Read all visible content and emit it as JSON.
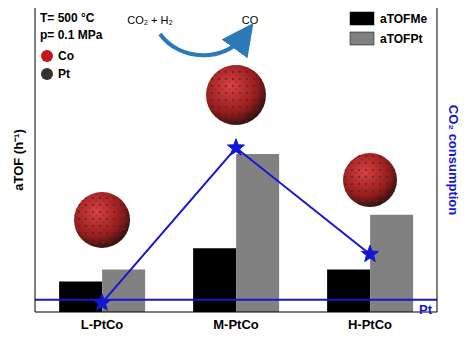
{
  "chart_data": {
    "type": "bar",
    "categories": [
      "L-PtCo",
      "M-PtCo",
      "H-PtCo"
    ],
    "y_label": "aTOF (h⁻¹)",
    "y2_label": "CO₂ consumption",
    "ylim": [
      0,
      100
    ],
    "yticks": [],
    "y2lim": [
      0,
      100
    ],
    "y2ticks": [],
    "tick_labels": "x",
    "legend": "upper right",
    "series": [
      {
        "name": "aTOFMe",
        "color": "#000000",
        "values": [
          10,
          21,
          14
        ]
      },
      {
        "name": "aTOFPt",
        "color": "#8c8c8c",
        "values": [
          14,
          52,
          32
        ]
      },
      {
        "type": "line",
        "axis": "y2",
        "color": "#1515d6",
        "marker": "star",
        "values": [
          3,
          54,
          19
        ]
      }
    ],
    "reference_lines": [
      {
        "axis": "y2",
        "value": 4,
        "label": "Pt",
        "color": "#1515d6"
      }
    ],
    "annotations": [
      "T= 500 °C",
      "p= 0.1 MPa",
      "CO₂ + H₂",
      "CO"
    ],
    "marker_key": [
      {
        "label": "Co",
        "color": "#c0181c"
      },
      {
        "label": "Pt",
        "color": "#333333"
      }
    ]
  }
}
